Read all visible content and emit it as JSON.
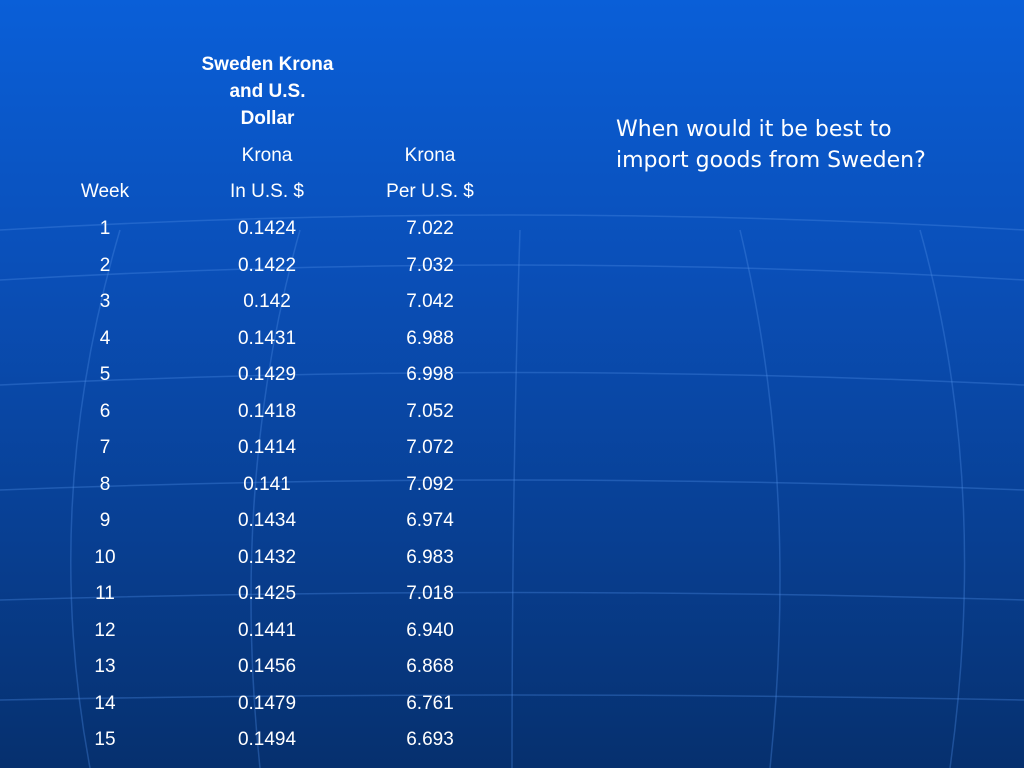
{
  "table": {
    "title_lines": [
      "Sweden Krona",
      "and U.S.",
      "Dollar"
    ],
    "header_row1": {
      "week": "",
      "usd": "Krona",
      "per": "Krona"
    },
    "header_row2": {
      "week": "Week",
      "usd": "In U.S. $",
      "per": "Per U.S. $"
    },
    "rows": [
      {
        "week": "1",
        "usd": "0.1424",
        "per": "7.022"
      },
      {
        "week": "2",
        "usd": "0.1422",
        "per": "7.032"
      },
      {
        "week": "3",
        "usd": "0.142",
        "per": "7.042"
      },
      {
        "week": "4",
        "usd": "0.1431",
        "per": "6.988"
      },
      {
        "week": "5",
        "usd": "0.1429",
        "per": "6.998"
      },
      {
        "week": "6",
        "usd": "0.1418",
        "per": "7.052"
      },
      {
        "week": "7",
        "usd": "0.1414",
        "per": "7.072"
      },
      {
        "week": "8",
        "usd": "0.141",
        "per": "7.092"
      },
      {
        "week": "9",
        "usd": "0.1434",
        "per": "6.974"
      },
      {
        "week": "10",
        "usd": "0.1432",
        "per": "6.983"
      },
      {
        "week": "11",
        "usd": "0.1425",
        "per": "7.018"
      },
      {
        "week": "12",
        "usd": "0.1441",
        "per": "6.940"
      },
      {
        "week": "13",
        "usd": "0.1456",
        "per": "6.868"
      },
      {
        "week": "14",
        "usd": "0.1479",
        "per": "6.761"
      },
      {
        "week": "15",
        "usd": "0.1494",
        "per": "6.693"
      }
    ]
  },
  "question": "When would it be best to import goods from Sweden?",
  "colors": {
    "background_top": "#0a5fd8",
    "background_bottom": "#06306e",
    "text": "#ffffff"
  }
}
